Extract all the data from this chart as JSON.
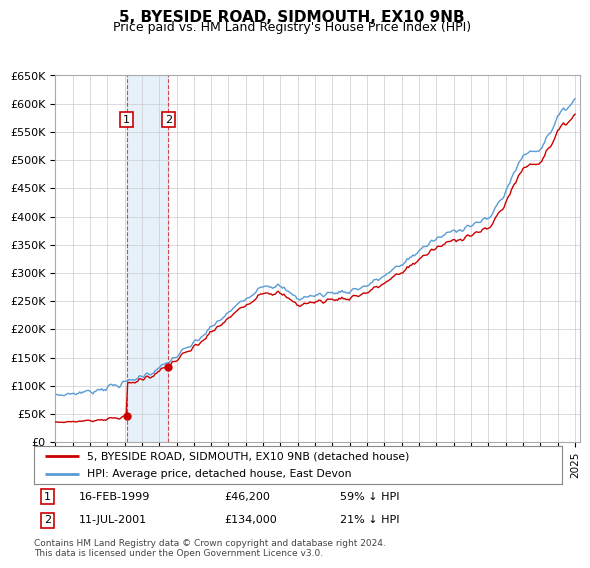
{
  "title": "5, BYESIDE ROAD, SIDMOUTH, EX10 9NB",
  "subtitle": "Price paid vs. HM Land Registry's House Price Index (HPI)",
  "ylabel_ticks": [
    "£0",
    "£50K",
    "£100K",
    "£150K",
    "£200K",
    "£250K",
    "£300K",
    "£350K",
    "£400K",
    "£450K",
    "£500K",
    "£550K",
    "£600K",
    "£650K"
  ],
  "ylim": [
    0,
    650000
  ],
  "ytick_vals": [
    0,
    50000,
    100000,
    150000,
    200000,
    250000,
    300000,
    350000,
    400000,
    450000,
    500000,
    550000,
    600000,
    650000
  ],
  "sale1_date": 1999.12,
  "sale1_price": 46200,
  "sale2_date": 2001.53,
  "sale2_price": 134000,
  "xlim_start": 1995,
  "xlim_end": 2025.3,
  "legend_line1": "5, BYESIDE ROAD, SIDMOUTH, EX10 9NB (detached house)",
  "legend_line2": "HPI: Average price, detached house, East Devon",
  "footnote": "Contains HM Land Registry data © Crown copyright and database right 2024.\nThis data is licensed under the Open Government Licence v3.0.",
  "hpi_color": "#5b9bd5",
  "price_color": "#cc0000",
  "bg_color": "#ffffff",
  "grid_color": "#cccccc",
  "shade_color": "#d6e8f7"
}
